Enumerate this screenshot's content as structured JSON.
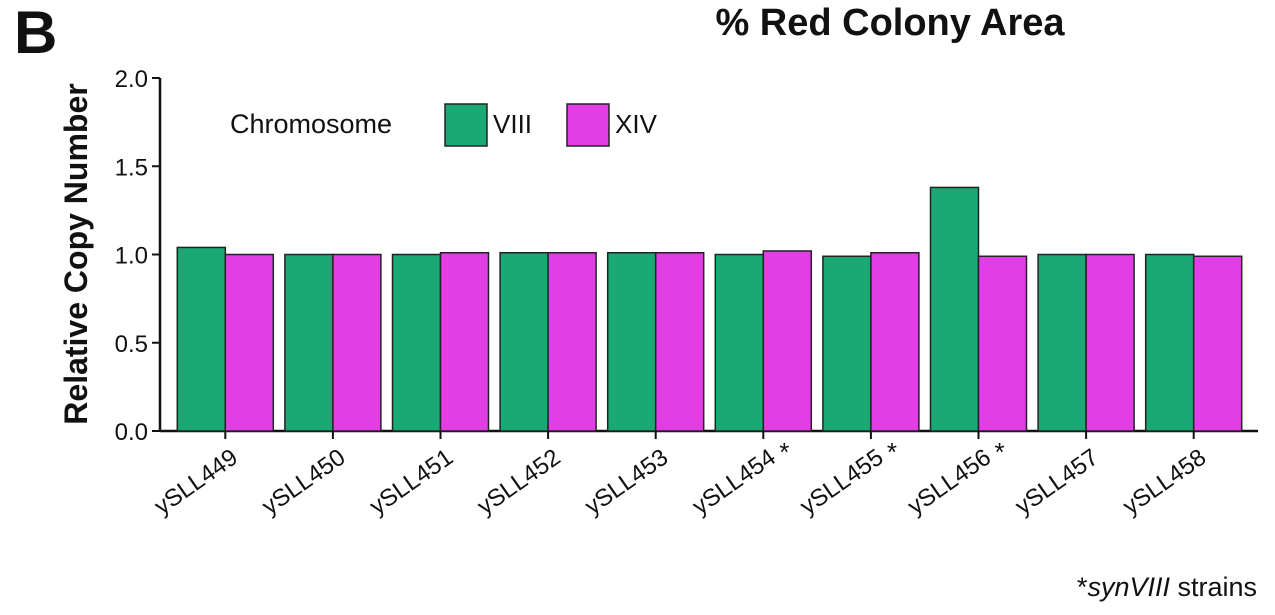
{
  "panel_label": "B",
  "chart_data": {
    "type": "bar",
    "title": "% Red Colony Area",
    "xlabel": "",
    "ylabel": "Relative Copy Number",
    "ylim": [
      0,
      2.0
    ],
    "yticks": [
      "0.0",
      "0.5",
      "1.0",
      "1.5",
      "2.0"
    ],
    "categories": [
      "ySLL449",
      "ySLL450",
      "ySLL451",
      "ySLL452",
      "ySLL453",
      "ySLL454",
      "ySLL455",
      "ySLL456",
      "ySLL457",
      "ySLL458"
    ],
    "starred": [
      false,
      false,
      false,
      false,
      false,
      true,
      true,
      true,
      false,
      false
    ],
    "star_mark": "*",
    "legend": {
      "title": "Chromosome",
      "placement": "top-left"
    },
    "series": [
      {
        "name": "VIII",
        "color": "#1aa874",
        "values": [
          1.04,
          1.0,
          1.0,
          1.01,
          1.01,
          1.0,
          0.99,
          1.38,
          1.0,
          1.0
        ]
      },
      {
        "name": "XIV",
        "color": "#e23ee6",
        "values": [
          1.0,
          1.0,
          1.01,
          1.01,
          1.01,
          1.02,
          1.01,
          0.99,
          1.0,
          0.99
        ]
      }
    ],
    "grid": false
  },
  "footnote": {
    "star": "*",
    "italic": "synVIII",
    "text": " strains"
  }
}
